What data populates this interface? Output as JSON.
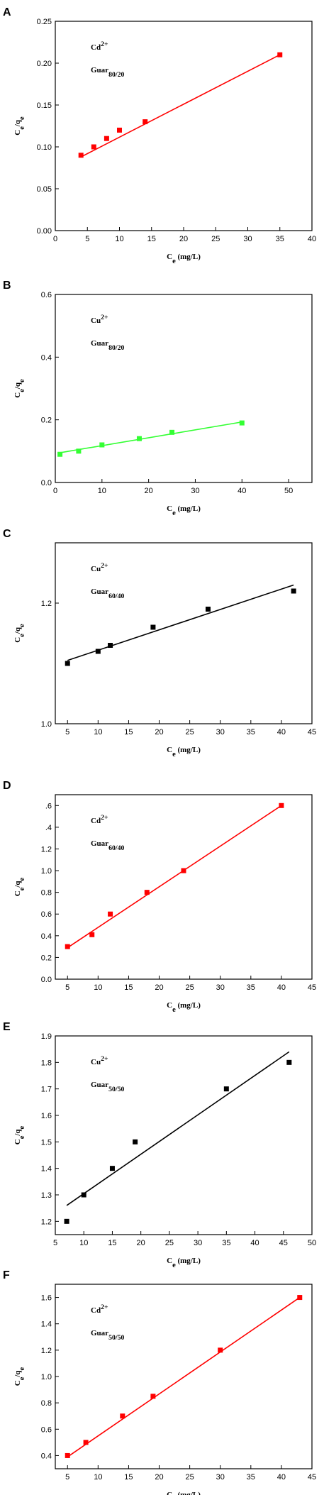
{
  "chart_data": [
    {
      "type": "scatter",
      "panel": "A",
      "color": "#ff0000",
      "annotation": {
        "ion": "Cd",
        "charge": "2+",
        "polymer": "Guar",
        "ratio": "80/20"
      },
      "xlabel": {
        "symbol": "C",
        "sub": "e",
        "unit": " (mg/L)"
      },
      "ylabel": {
        "num": "C",
        "num_sub": "e",
        "sep": "/",
        "den": "q",
        "den_sub": "e"
      },
      "x": [
        4,
        6,
        8,
        10,
        14,
        35
      ],
      "values": [
        0.09,
        0.1,
        0.11,
        0.12,
        0.13,
        0.21
      ],
      "fit": {
        "x": [
          4,
          35
        ],
        "y": [
          0.088,
          0.21
        ]
      },
      "xlim": [
        0,
        40
      ],
      "xticks": [
        0,
        5,
        10,
        15,
        20,
        25,
        30,
        35,
        40
      ],
      "ylim": [
        0,
        0.25
      ],
      "yticks": [
        {
          "value": 0,
          "label": "0.00"
        },
        {
          "value": 0.05,
          "label": "0.05"
        },
        {
          "value": 0.1,
          "label": "0.10"
        },
        {
          "value": 0.15,
          "label": "0.15"
        },
        {
          "value": 0.2,
          "label": "0.20"
        },
        {
          "value": 0.25,
          "label": "0.25"
        }
      ]
    },
    {
      "type": "scatter",
      "panel": "B",
      "color": "#33ff33",
      "annotation": {
        "ion": "Cu",
        "charge": "2+",
        "polymer": "Guar",
        "ratio": "80/20"
      },
      "xlabel": {
        "symbol": "C",
        "sub": "e",
        "unit": " (mg/L)"
      },
      "ylabel": {
        "num": "C",
        "num_sub": "e",
        "sep": "/",
        "den": "q",
        "den_sub": "e"
      },
      "x": [
        1,
        5,
        10,
        18,
        25,
        40
      ],
      "values": [
        0.09,
        0.1,
        0.12,
        0.14,
        0.16,
        0.19
      ],
      "fit": {
        "x": [
          1,
          40
        ],
        "y": [
          0.095,
          0.193
        ]
      },
      "xlim": [
        0,
        55
      ],
      "xticks": [
        0,
        10,
        20,
        30,
        40,
        50
      ],
      "ylim": [
        0,
        0.6
      ],
      "yticks": [
        {
          "value": 0,
          "label": "0.0"
        },
        0.2,
        0.4,
        0.6
      ]
    },
    {
      "type": "scatter",
      "panel": "C",
      "color": "#000000",
      "annotation": {
        "ion": "Cu",
        "charge": "2+",
        "polymer": "Guar",
        "ratio": "60/40"
      },
      "xlabel": {
        "symbol": "C",
        "sub": "e",
        "unit": " (mg/L)"
      },
      "ylabel": {
        "num": "C",
        "num_sub": "e",
        "sep": "/",
        "den": "q",
        "den_sub": "e"
      },
      "x": [
        5,
        10,
        12,
        19,
        28,
        42
      ],
      "values": [
        1.1,
        1.12,
        1.13,
        1.16,
        1.19,
        1.22
      ],
      "fit": {
        "x": [
          5,
          42
        ],
        "y": [
          1.105,
          1.23
        ]
      },
      "xlim": [
        3,
        45
      ],
      "xticks": [
        5,
        10,
        15,
        20,
        25,
        30,
        35,
        40,
        45
      ],
      "ylim": [
        1.0,
        1.3
      ],
      "yticks": [
        {
          "value": 1.0,
          "label": "1.0"
        },
        1.2
      ]
    },
    {
      "type": "scatter",
      "panel": "D",
      "color": "#ff0000",
      "annotation": {
        "ion": "Cd",
        "charge": "2+",
        "polymer": "Guar",
        "ratio": "60/40"
      },
      "xlabel": {
        "symbol": "C",
        "sub": "e",
        "unit": " (mg/L)"
      },
      "ylabel": {
        "num": "C",
        "num_sub": "e",
        "sep": "/",
        "den": "q",
        "den_sub": "e"
      },
      "x": [
        5,
        9,
        12,
        18,
        24,
        40
      ],
      "values": [
        0.3,
        0.41,
        0.6,
        0.8,
        1.0,
        1.6
      ],
      "fit": {
        "x": [
          5,
          40
        ],
        "y": [
          0.29,
          1.6
        ]
      },
      "xlim": [
        3,
        45
      ],
      "xticks": [
        5,
        10,
        15,
        20,
        25,
        30,
        35,
        40,
        45
      ],
      "ylim": [
        0,
        1.7
      ],
      "yticks": [
        {
          "value": 0,
          "label": "0.0"
        },
        0.2,
        0.4,
        0.6,
        0.8,
        {
          "value": 1.0,
          "label": "1.0"
        },
        1.2,
        {
          "value": 1.4,
          "label": ".4"
        },
        {
          "value": 1.6,
          "label": ".6"
        }
      ]
    },
    {
      "type": "scatter",
      "panel": "E",
      "color": "#000000",
      "annotation": {
        "ion": "Cu",
        "charge": "2+",
        "polymer": "Guar",
        "ratio": "50/50"
      },
      "xlabel": {
        "symbol": "C",
        "sub": "e",
        "unit": " (mg/L)"
      },
      "ylabel": {
        "num": "C",
        "num_sub": "e",
        "sep": "/",
        "den": "q",
        "den_sub": "e"
      },
      "x": [
        7,
        10,
        15,
        19,
        35,
        46
      ],
      "values": [
        1.2,
        1.3,
        1.4,
        1.5,
        1.7,
        1.8
      ],
      "fit": {
        "x": [
          7,
          46
        ],
        "y": [
          1.26,
          1.84
        ]
      },
      "xlim": [
        5,
        50
      ],
      "xticks": [
        5,
        10,
        15,
        20,
        25,
        30,
        35,
        40,
        45,
        50
      ],
      "ylim": [
        1.15,
        1.9
      ],
      "yticks": [
        1.2,
        1.3,
        1.4,
        1.5,
        1.6,
        1.7,
        1.8,
        1.9
      ]
    },
    {
      "type": "scatter",
      "panel": "F",
      "color": "#ff0000",
      "annotation": {
        "ion": "Cd",
        "charge": "2+",
        "polymer": "Guar",
        "ratio": "50/50"
      },
      "xlabel": {
        "symbol": "C",
        "sub": "e",
        "unit": " (mg/L)"
      },
      "ylabel": {
        "num": "C",
        "num_sub": "e",
        "sep": "/",
        "den": "q",
        "den_sub": "e"
      },
      "x": [
        5,
        8,
        14,
        19,
        30,
        43
      ],
      "values": [
        0.4,
        0.5,
        0.7,
        0.85,
        1.2,
        1.6
      ],
      "fit": {
        "x": [
          5,
          43
        ],
        "y": [
          0.39,
          1.6
        ]
      },
      "xlim": [
        3,
        45
      ],
      "xticks": [
        5,
        10,
        15,
        20,
        25,
        30,
        35,
        40,
        45
      ],
      "ylim": [
        0.3,
        1.7
      ],
      "yticks": [
        0.4,
        0.6,
        0.8,
        {
          "value": 1.0,
          "label": "1.0"
        },
        1.2,
        1.4,
        1.6
      ]
    }
  ]
}
